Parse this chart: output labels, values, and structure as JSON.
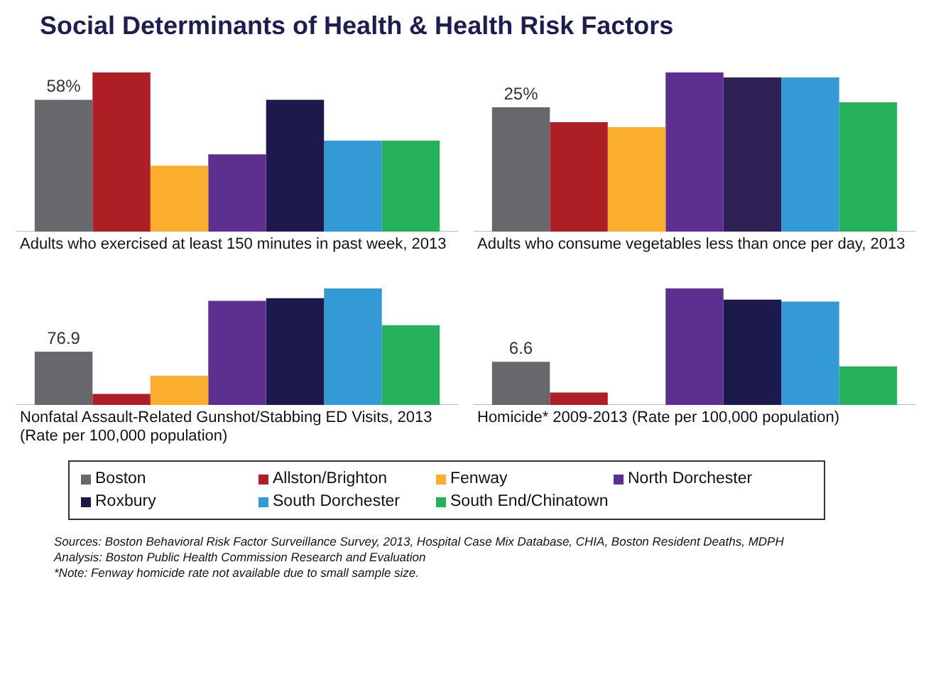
{
  "chart_data": [
    {
      "type": "bar",
      "title": "Social Determinants of Health & Health Risk Factors",
      "xlabel": "Adults who exercised at least 150 minutes in past week, 2013",
      "categories": [
        null
      ],
      "ylim": [
        0,
        70
      ],
      "tick_labels": false,
      "legend": "bottom",
      "series": [
        {
          "name": "Boston",
          "color": "#67686c",
          "values": [
            58
          ],
          "value_labels": [
            "58%"
          ]
        },
        {
          "name": "Allston/Brighton",
          "color": "#ad1f24",
          "values": [
            70
          ]
        },
        {
          "name": "Fenway",
          "color": "#fbad2e",
          "values": [
            29
          ]
        },
        {
          "name": "North Dorchester",
          "color": "#5d2f8e",
          "values": [
            34
          ]
        },
        {
          "name": "Roxbury",
          "color": "#1c1a4c",
          "values": [
            58
          ]
        },
        {
          "name": "South Dorchester",
          "color": "#349ad5",
          "values": [
            40
          ]
        },
        {
          "name": "South End/Chinatown",
          "color": "#25b159",
          "values": [
            40
          ]
        }
      ]
    },
    {
      "type": "bar",
      "xlabel": "Adults who consume vegetables less than once per day, 2013",
      "categories": [
        null
      ],
      "ylim": [
        0,
        32
      ],
      "tick_labels": false,
      "series": [
        {
          "color": "#67686c",
          "values": [
            25
          ],
          "value_labels": [
            "25%"
          ]
        },
        {
          "color": "#ad1f24",
          "values": [
            22
          ]
        },
        {
          "color": "#fbad2e",
          "values": [
            21
          ]
        },
        {
          "color": "#5d2f8e",
          "values": [
            32
          ]
        },
        {
          "color": "#2f2156",
          "values": [
            31
          ]
        },
        {
          "color": "#349ad5",
          "values": [
            31
          ]
        },
        {
          "color": "#25b159",
          "values": [
            26
          ]
        }
      ]
    },
    {
      "type": "bar",
      "xlabel": "Nonfatal Assault-Related Gunshot/Stabbing ED Visits, 2013\n(Rate per 100,000 population)",
      "categories": [
        null
      ],
      "ylim": [
        0,
        168
      ],
      "tick_labels": false,
      "series": [
        {
          "color": "#67686c",
          "values": [
            76.9
          ],
          "value_labels": [
            "76.9"
          ]
        },
        {
          "color": "#ad1f24",
          "values": [
            16
          ]
        },
        {
          "color": "#fbad2e",
          "values": [
            42
          ]
        },
        {
          "color": "#5d2f8e",
          "values": [
            150
          ]
        },
        {
          "color": "#1c1a4c",
          "values": [
            154
          ]
        },
        {
          "color": "#349ad5",
          "values": [
            168
          ]
        },
        {
          "color": "#25b159",
          "values": [
            115
          ]
        }
      ]
    },
    {
      "type": "bar",
      "xlabel": "Homicide* 2009-2013 (Rate per 100,000 population)",
      "categories": [
        null
      ],
      "ylim": [
        0,
        17.8
      ],
      "tick_labels": false,
      "annotations": [
        "Sources: Boston Behavioral Risk Factor Surveillance Survey, 2013, Hospital Case Mix Database, CHIA, Boston Resident Deaths, MDPH",
        "Analysis: Boston Public Health Commission Research and Evaluation",
        "*Note: Fenway homicide rate not available due to small sample size."
      ],
      "series": [
        {
          "color": "#67686c",
          "values": [
            6.6
          ],
          "value_labels": [
            "6.6"
          ]
        },
        {
          "color": "#ad1f24",
          "values": [
            1.9
          ]
        },
        {
          "color": "#fbad2e",
          "values": [
            null
          ]
        },
        {
          "color": "#5d2f8e",
          "values": [
            17.8
          ]
        },
        {
          "color": "#1c1a4c",
          "values": [
            16.1
          ]
        },
        {
          "color": "#349ad5",
          "values": [
            15.8
          ]
        },
        {
          "color": "#25b159",
          "values": [
            5.9
          ]
        }
      ]
    }
  ]
}
